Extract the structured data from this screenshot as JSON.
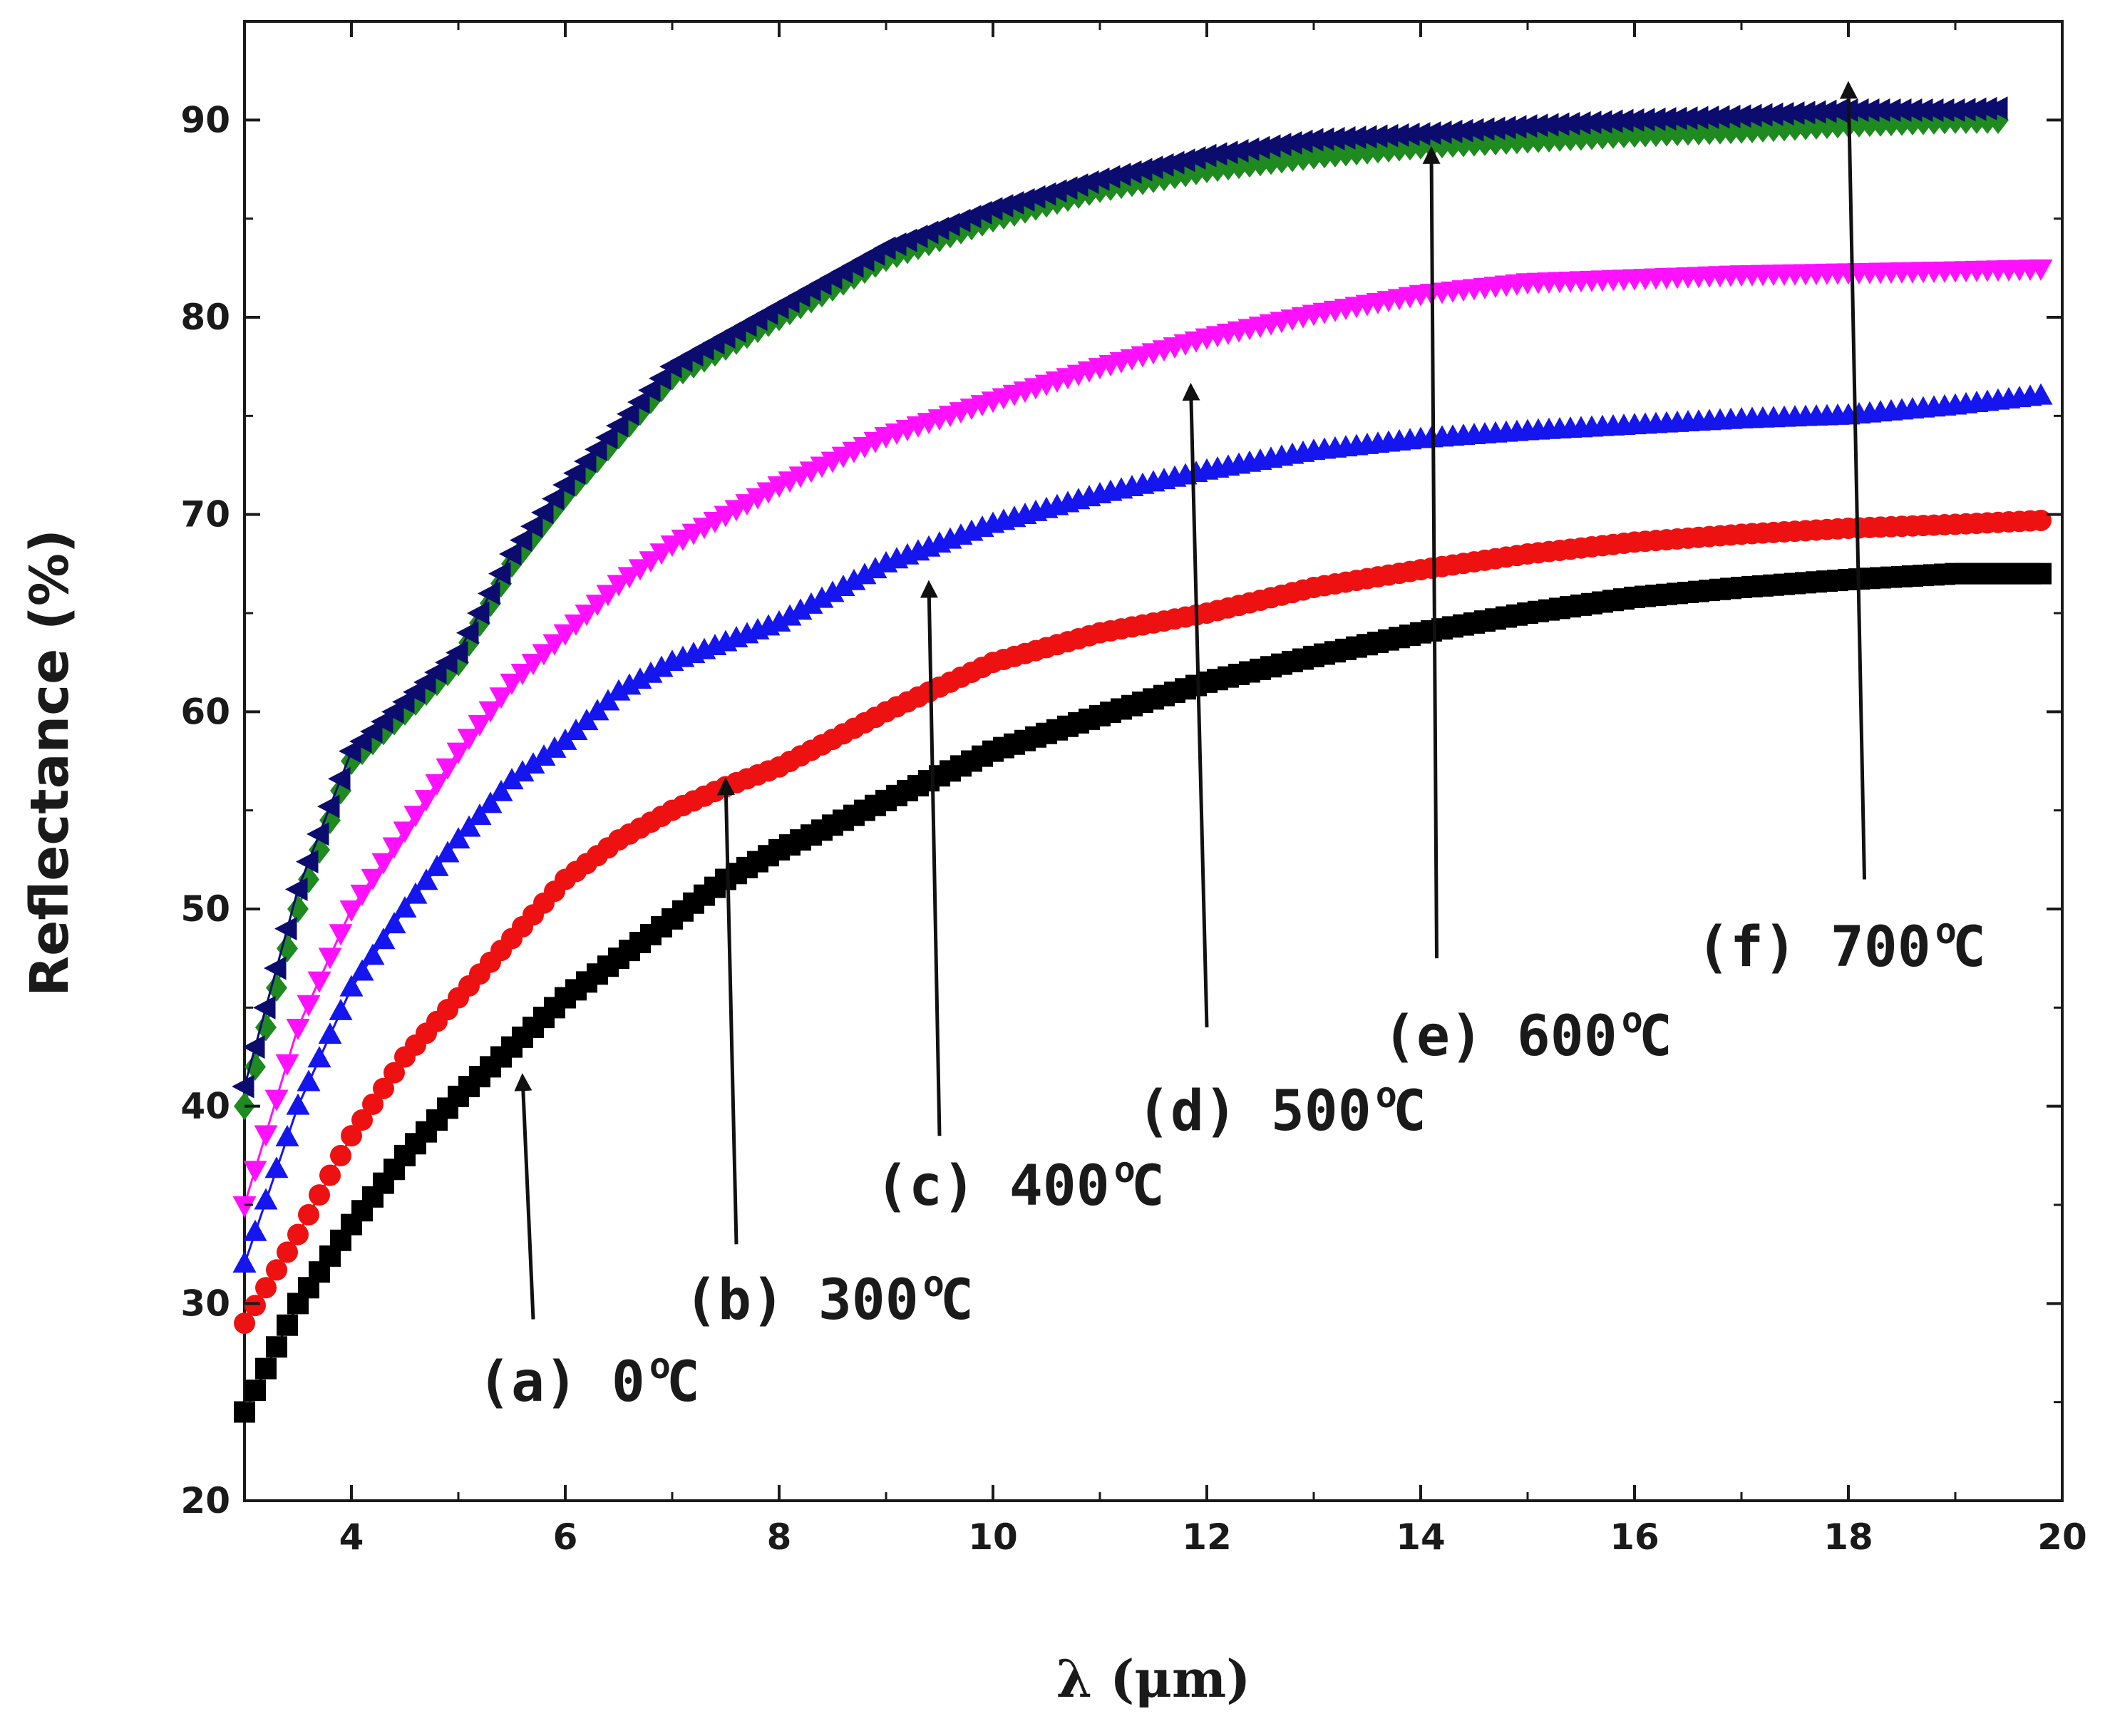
{
  "chart_data": {
    "type": "scatter",
    "title": "",
    "xlabel": "λ (μm)",
    "ylabel": "Reflectance (%)",
    "xlim": [
      3,
      20
    ],
    "ylim": [
      20,
      95
    ],
    "grid": false,
    "x_ticks": [
      "4",
      "6",
      "8",
      "10",
      "12",
      "14",
      "16",
      "18",
      "20"
    ],
    "y_ticks": [
      "20",
      "30",
      "40",
      "50",
      "60",
      "70",
      "80",
      "90"
    ],
    "series": [
      {
        "name": "(a) 0 °C",
        "color": "#000000",
        "marker": "square",
        "x": [
          3.0,
          3.5,
          4.0,
          4.5,
          5.0,
          5.5,
          6.0,
          6.5,
          7.0,
          7.5,
          8.0,
          9.0,
          10.0,
          11.0,
          12.0,
          13.0,
          14.0,
          15.0,
          16.0,
          17.0,
          18.0,
          19.0,
          19.8
        ],
        "y": [
          24.5,
          30.0,
          34.0,
          37.5,
          40.5,
          43.0,
          45.5,
          47.5,
          49.5,
          51.5,
          53.0,
          55.5,
          58.0,
          59.8,
          61.5,
          62.8,
          64.0,
          65.0,
          65.8,
          66.3,
          66.7,
          67.0,
          67.0
        ]
      },
      {
        "name": "(b) 300 °C",
        "color": "#ee1111",
        "marker": "circle",
        "x": [
          3.0,
          3.5,
          4.0,
          4.5,
          5.0,
          5.5,
          6.0,
          6.5,
          7.0,
          7.5,
          8.0,
          9.0,
          10.0,
          11.0,
          12.0,
          13.0,
          14.0,
          15.0,
          16.0,
          17.0,
          18.0,
          19.0,
          19.8
        ],
        "y": [
          29.0,
          33.5,
          38.5,
          42.5,
          45.5,
          48.5,
          51.5,
          53.5,
          55.0,
          56.2,
          57.2,
          60.0,
          62.5,
          64.0,
          65.0,
          66.3,
          67.2,
          68.0,
          68.6,
          69.0,
          69.3,
          69.5,
          69.7
        ]
      },
      {
        "name": "(c) 400 °C",
        "color": "#1515ee",
        "marker": "triangle-up",
        "x": [
          3.0,
          3.5,
          4.0,
          4.5,
          5.0,
          5.5,
          6.0,
          6.5,
          7.0,
          7.5,
          8.0,
          9.0,
          10.0,
          11.0,
          12.0,
          13.0,
          14.0,
          15.0,
          16.0,
          17.0,
          18.0,
          19.0,
          19.8
        ],
        "y": [
          32.0,
          40.0,
          46.0,
          50.0,
          53.5,
          56.5,
          58.5,
          61.0,
          62.5,
          63.5,
          64.5,
          67.5,
          69.5,
          71.0,
          72.2,
          73.2,
          73.8,
          74.2,
          74.5,
          74.8,
          75.0,
          75.5,
          76.0
        ]
      },
      {
        "name": "(d) 500 °C",
        "color": "#ff11ff",
        "marker": "triangle-down",
        "x": [
          3.0,
          3.5,
          4.0,
          4.5,
          5.0,
          5.5,
          6.0,
          6.5,
          7.0,
          7.5,
          8.0,
          9.0,
          10.0,
          11.0,
          12.0,
          13.0,
          14.0,
          15.0,
          16.0,
          17.0,
          18.0,
          19.0,
          19.8
        ],
        "y": [
          35.0,
          44.0,
          50.0,
          54.0,
          58.0,
          61.5,
          64.0,
          66.5,
          68.5,
          70.0,
          71.5,
          74.0,
          75.8,
          77.5,
          79.0,
          80.2,
          81.2,
          81.8,
          82.0,
          82.2,
          82.3,
          82.4,
          82.5
        ]
      },
      {
        "name": "(e) 600 °C",
        "color": "#1f8a1f",
        "marker": "diamond",
        "x": [
          3.0,
          3.5,
          4.0,
          4.5,
          5.0,
          5.5,
          6.0,
          6.5,
          7.0,
          7.5,
          8.0,
          9.0,
          10.0,
          11.0,
          12.0,
          13.0,
          14.0,
          15.0,
          16.0,
          17.0,
          18.0,
          19.0,
          19.4
        ],
        "y": [
          40.0,
          50.0,
          57.5,
          60.0,
          62.5,
          67.5,
          71.0,
          74.0,
          77.0,
          78.5,
          80.0,
          83.0,
          85.0,
          86.5,
          87.5,
          88.2,
          88.7,
          89.0,
          89.3,
          89.5,
          89.8,
          90.0,
          90.0
        ]
      },
      {
        "name": "(f) 700 °C",
        "color": "#0c0c6e",
        "marker": "triangle-left",
        "x": [
          3.0,
          3.5,
          4.0,
          4.5,
          5.0,
          5.5,
          6.0,
          6.5,
          7.0,
          7.5,
          8.0,
          9.0,
          10.0,
          11.0,
          12.0,
          13.0,
          14.0,
          15.0,
          16.0,
          17.0,
          18.0,
          19.0,
          19.4
        ],
        "y": [
          41.0,
          51.0,
          58.0,
          60.5,
          63.0,
          68.0,
          71.5,
          74.5,
          77.5,
          79.0,
          80.5,
          83.5,
          85.5,
          87.0,
          88.2,
          89.0,
          89.3,
          89.7,
          90.0,
          90.2,
          90.5,
          90.5,
          90.6
        ]
      }
    ],
    "annotations": [
      {
        "label": "(a) 0",
        "unit": "C",
        "degree": "o",
        "arrow_from": [
          5.7,
          29.2
        ],
        "arrow_to": [
          5.6,
          41.5
        ]
      },
      {
        "label": "(b) 300",
        "unit": "C",
        "degree": "o",
        "arrow_from": [
          7.6,
          33.0
        ],
        "arrow_to": [
          7.5,
          56.5
        ]
      },
      {
        "label": "(c) 400",
        "unit": "C",
        "degree": "o",
        "arrow_from": [
          9.5,
          38.5
        ],
        "arrow_to": [
          9.4,
          66.5
        ]
      },
      {
        "label": "(d) 500",
        "unit": "C",
        "degree": "o",
        "arrow_from": [
          12.0,
          44.0
        ],
        "arrow_to": [
          11.85,
          76.5
        ]
      },
      {
        "label": "(e) 600",
        "unit": "C",
        "degree": "o",
        "arrow_from": [
          14.15,
          47.5
        ],
        "arrow_to": [
          14.1,
          88.5
        ]
      },
      {
        "label": "(f) 700",
        "unit": "C",
        "degree": "o",
        "arrow_from": [
          18.15,
          51.5
        ],
        "arrow_to": [
          18.0,
          91.8
        ]
      }
    ]
  }
}
